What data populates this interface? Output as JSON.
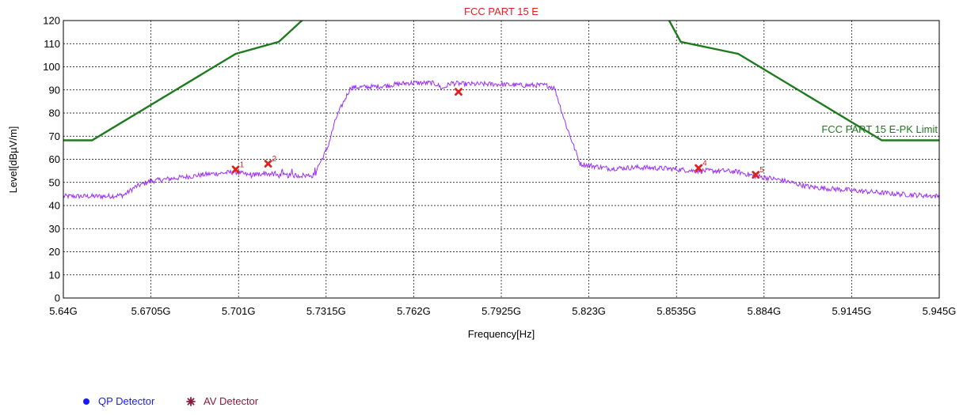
{
  "chart_data": {
    "type": "line",
    "title": "FCC PART 15 E",
    "xlabel": "Frequency[Hz]",
    "ylabel": "Level[dBµV/m]",
    "xlim": [
      5.64,
      5.945
    ],
    "ylim": [
      0,
      120
    ],
    "x_ticks": [
      5.64,
      5.6705,
      5.701,
      5.7315,
      5.762,
      5.7925,
      5.823,
      5.8535,
      5.884,
      5.9145,
      5.945
    ],
    "x_tick_labels": [
      "5.64G",
      "5.6705G",
      "5.701G",
      "5.7315G",
      "5.762G",
      "5.7925G",
      "5.823G",
      "5.8535G",
      "5.884G",
      "5.9145G",
      "5.945G"
    ],
    "y_ticks": [
      0,
      10,
      20,
      30,
      40,
      50,
      60,
      70,
      80,
      90,
      100,
      110,
      120
    ],
    "grid": true,
    "colors": {
      "trace": "#9b30ff",
      "limit": "#1e7b1e",
      "marker": "#e02020",
      "title": "#e02020",
      "qp": "#1a1aff",
      "av": "#8b1a3a"
    },
    "series": [
      {
        "name": "FCC PART 15 E-PK Limit",
        "x": [
          5.64,
          5.65,
          5.7,
          5.715,
          5.725,
          5.85,
          5.855,
          5.875,
          5.925,
          5.945
        ],
        "values": [
          68.2,
          68.2,
          105.6,
          110.8,
          122.2,
          122.2,
          110.8,
          105.6,
          68.2,
          68.2
        ]
      },
      {
        "name": "",
        "x": [
          5.64,
          5.655,
          5.661,
          5.665,
          5.67,
          5.68,
          5.69,
          5.7,
          5.705,
          5.71,
          5.715,
          5.72,
          5.727,
          5.73,
          5.732,
          5.735,
          5.74,
          5.75,
          5.76,
          5.768,
          5.77,
          5.772,
          5.775,
          5.78,
          5.79,
          5.8,
          5.808,
          5.811,
          5.815,
          5.82,
          5.83,
          5.84,
          5.85,
          5.86,
          5.87,
          5.875,
          5.88,
          5.89,
          5.9,
          5.91,
          5.92,
          5.93,
          5.945
        ],
        "values": [
          44,
          44,
          44.5,
          48,
          50.5,
          52,
          53.5,
          54.5,
          53,
          54,
          53,
          53,
          53,
          60,
          65,
          78,
          91,
          91.5,
          93,
          93,
          92.5,
          90.5,
          93,
          92.5,
          92.5,
          92,
          92,
          91,
          75,
          58,
          56,
          56.5,
          56,
          55,
          55,
          54.5,
          53,
          51,
          48,
          47,
          46,
          45,
          44
        ]
      }
    ],
    "markers": [
      {
        "label": "1",
        "x": 5.7,
        "y": 55.6
      },
      {
        "label": "2",
        "x": 5.7113,
        "y": 58.1
      },
      {
        "label": "",
        "x": 5.7776,
        "y": 89.2
      },
      {
        "label": "4",
        "x": 5.8612,
        "y": 56.2
      },
      {
        "label": "5",
        "x": 5.8811,
        "y": 53.3
      }
    ],
    "limit_label": "FCC PART 15 E-PK Limit",
    "legend": {
      "placement": "bottom-left",
      "items": [
        {
          "name": "QP Detector"
        },
        {
          "name": "AV Detector"
        }
      ]
    }
  }
}
